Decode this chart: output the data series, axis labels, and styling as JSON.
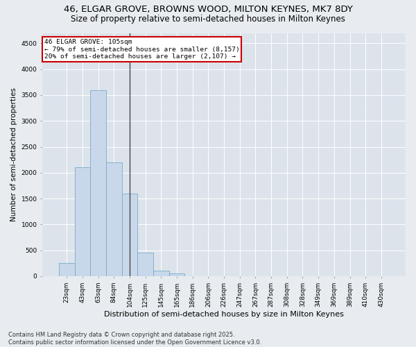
{
  "title1": "46, ELGAR GROVE, BROWNS WOOD, MILTON KEYNES, MK7 8DY",
  "title2": "Size of property relative to semi-detached houses in Milton Keynes",
  "xlabel": "Distribution of semi-detached houses by size in Milton Keynes",
  "ylabel": "Number of semi-detached properties",
  "categories": [
    "23sqm",
    "43sqm",
    "63sqm",
    "84sqm",
    "104sqm",
    "125sqm",
    "145sqm",
    "165sqm",
    "186sqm",
    "206sqm",
    "226sqm",
    "247sqm",
    "267sqm",
    "287sqm",
    "308sqm",
    "328sqm",
    "349sqm",
    "369sqm",
    "389sqm",
    "410sqm",
    "430sqm"
  ],
  "values": [
    250,
    2100,
    3600,
    2200,
    1600,
    450,
    100,
    50,
    0,
    0,
    0,
    0,
    0,
    0,
    0,
    0,
    0,
    0,
    0,
    0,
    0
  ],
  "bar_color": "#c8d8ea",
  "bar_edge_color": "#7aaac8",
  "vline_x_idx": 4,
  "vline_color": "#444444",
  "annotation_title": "46 ELGAR GROVE: 105sqm",
  "annotation_line1": "← 79% of semi-detached houses are smaller (8,157)",
  "annotation_line2": "20% of semi-detached houses are larger (2,107) →",
  "annotation_box_facecolor": "#ffffff",
  "annotation_box_edgecolor": "#cc0000",
  "ylim": [
    0,
    4700
  ],
  "yticks": [
    0,
    500,
    1000,
    1500,
    2000,
    2500,
    3000,
    3500,
    4000,
    4500
  ],
  "bg_color": "#e8ecf0",
  "plot_bg_color": "#dce3eb",
  "footer": "Contains HM Land Registry data © Crown copyright and database right 2025.\nContains public sector information licensed under the Open Government Licence v3.0.",
  "title1_fontsize": 9.5,
  "title2_fontsize": 8.5,
  "ylabel_fontsize": 7.5,
  "xlabel_fontsize": 8,
  "tick_fontsize": 6.5,
  "annotation_fontsize": 6.8,
  "footer_fontsize": 6
}
